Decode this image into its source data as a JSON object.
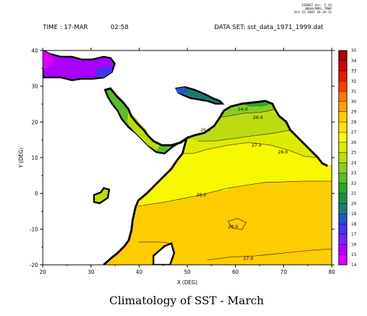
{
  "header": {
    "ferret_info": [
      "FERRET Ver. 5.33",
      "NOAA/PMEL TMAP",
      "Oct 22 2007 18:28:12"
    ],
    "time_label": "TIME : 17-MAR",
    "time_value": "02:58",
    "dataset_label": "DATA SET: sst_data_1971_1999.dat"
  },
  "chart_data": {
    "type": "heatmap",
    "title": "Climatology of SST - March",
    "xlabel": "X (DEG)",
    "ylabel": "Y (DEG)",
    "xlim": [
      20,
      80
    ],
    "ylim": [
      -20,
      40
    ],
    "x_ticks": [
      20,
      30,
      40,
      50,
      60,
      70,
      80
    ],
    "y_ticks": [
      -20,
      -10,
      0,
      10,
      20,
      30,
      40
    ],
    "colorbar": {
      "levels": [
        14,
        15,
        16,
        17,
        18,
        19,
        20,
        21,
        22,
        23,
        24,
        25,
        26,
        27,
        28,
        29,
        30,
        31,
        32,
        33,
        34,
        35
      ],
      "colors": [
        "#dd00ff",
        "#aa00ff",
        "#7722ff",
        "#4433ee",
        "#2255cc",
        "#1b7a70",
        "#16913c",
        "#2ba62a",
        "#5bbb28",
        "#8ccc20",
        "#bcdc10",
        "#dcec00",
        "#f8f800",
        "#ffe000",
        "#ffcc00",
        "#ffa000",
        "#ff7700",
        "#ff3c00",
        "#ee1800",
        "#d40000",
        "#aa0000"
      ]
    },
    "contour_labels": [
      "24.0",
      "26.0",
      "26.0",
      "27.0",
      "28.0",
      "28.0",
      "28.0",
      "27.0"
    ]
  }
}
